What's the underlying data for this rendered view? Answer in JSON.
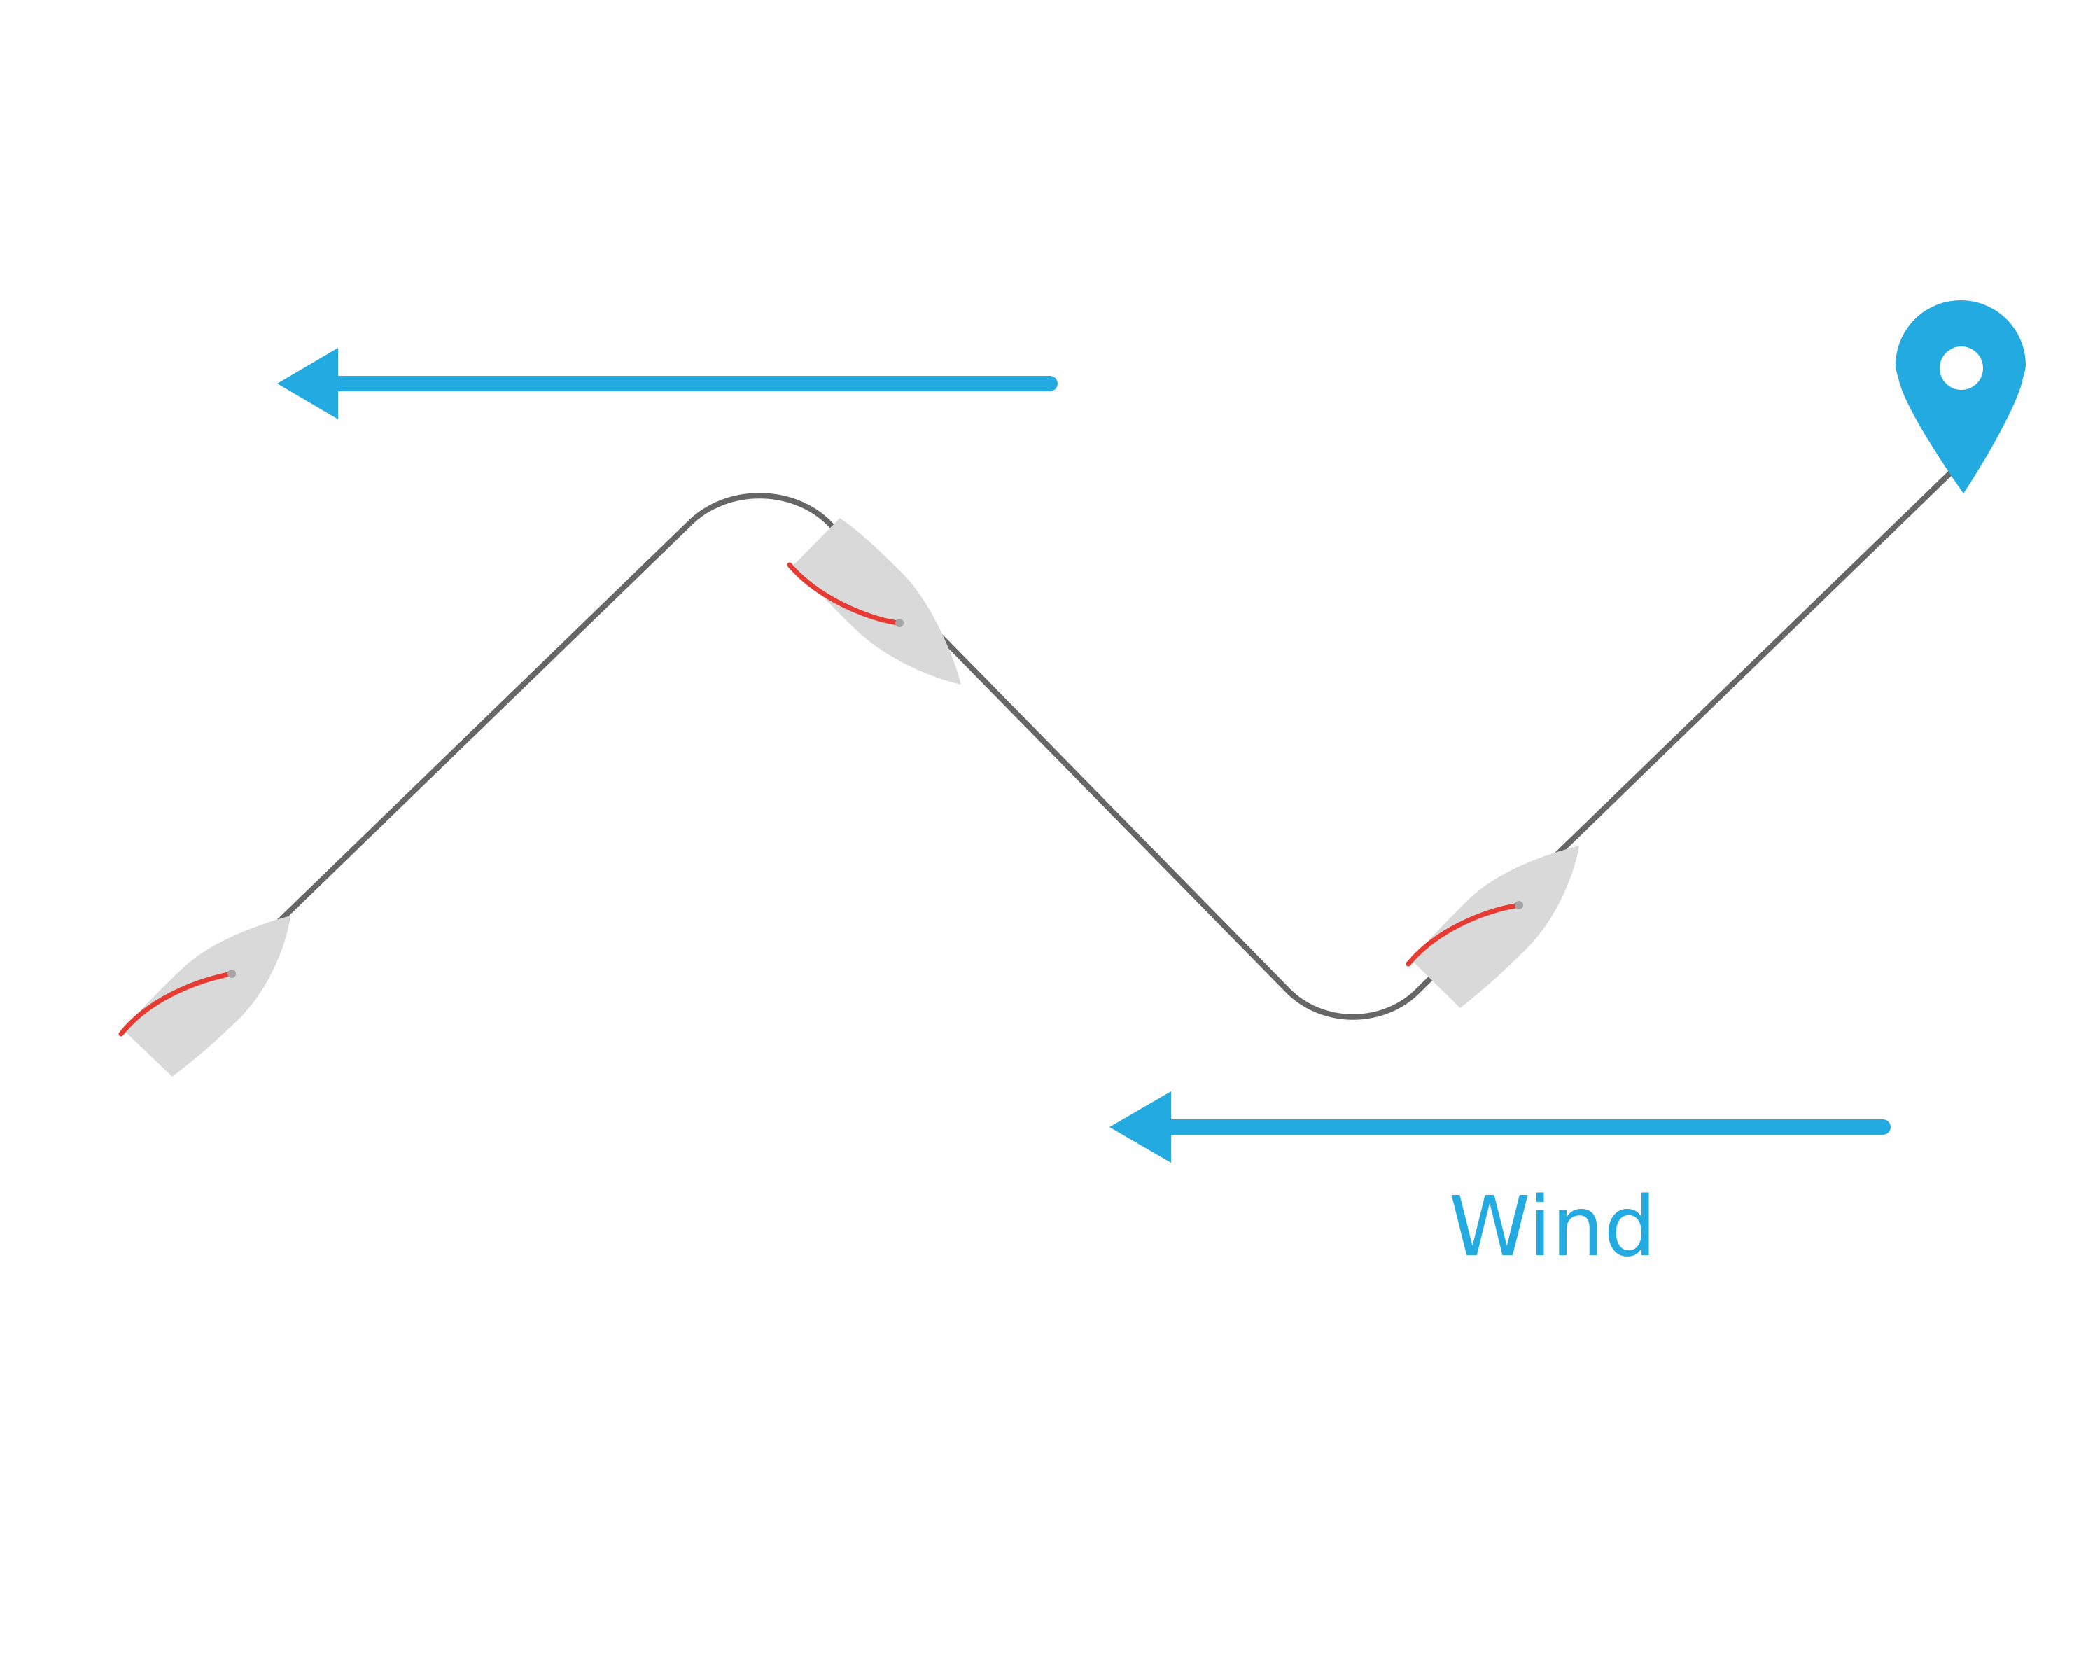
{
  "diagram": {
    "wind_label": "Wind",
    "colors": {
      "background": "#ffffff",
      "arrow": "#23aae0",
      "course_line": "#666666",
      "hull": "#d8d9d8",
      "sail": "#e53b33",
      "mast": "#a5a5a5",
      "marker": "#23aae0"
    },
    "icons": {
      "destination": "map-pin-icon",
      "boat": "sailboat-icon",
      "wind_direction": "arrow-left-icon"
    }
  }
}
